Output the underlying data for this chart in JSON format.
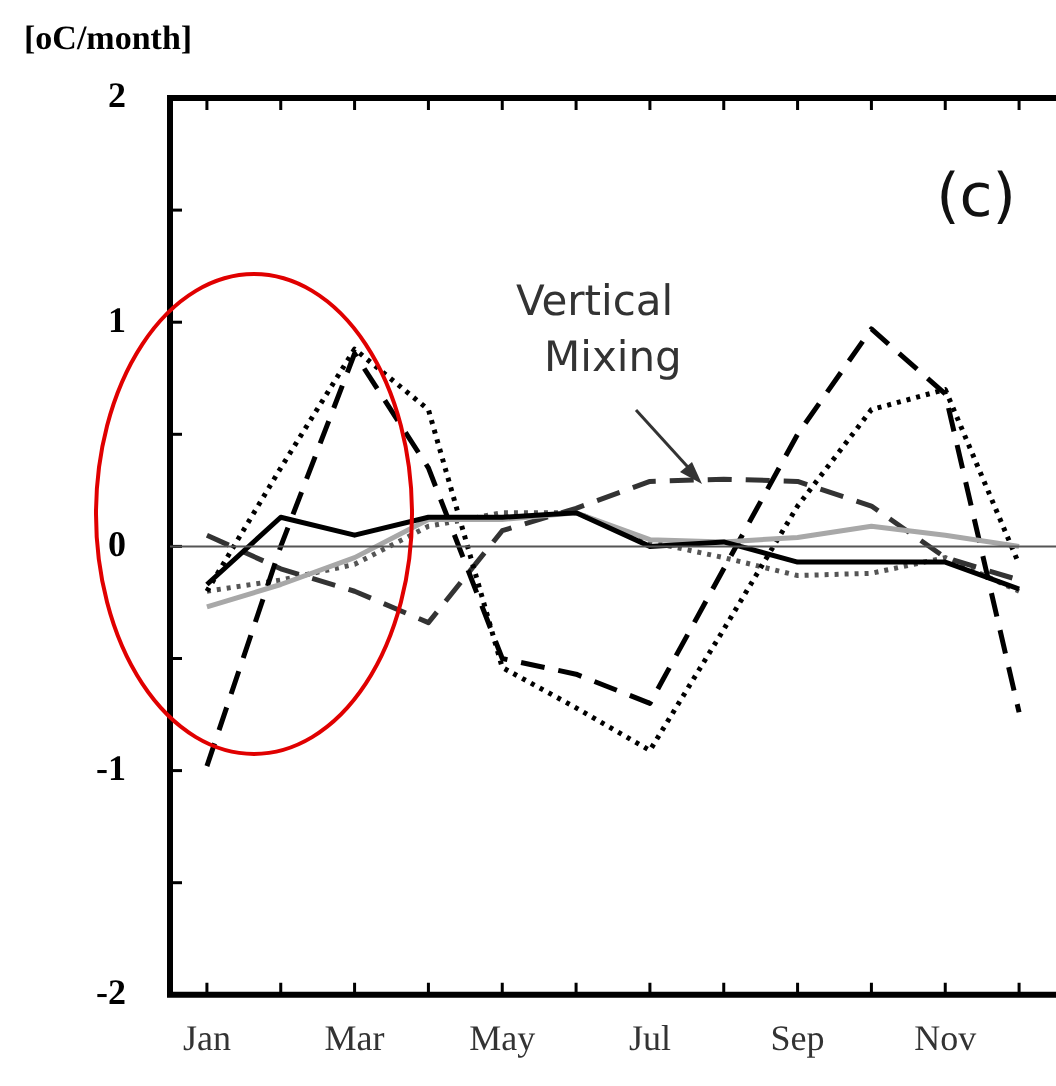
{
  "chart_data": {
    "type": "line",
    "ylabel": "[oC/month]",
    "categories": [
      "Jan",
      null,
      "Mar",
      null,
      "May",
      null,
      "Jul",
      null,
      "Sep",
      null,
      "Nov",
      null
    ],
    "ylim": [
      -2,
      2
    ],
    "yticks": [
      -2,
      {
        "value": -1.5,
        "label": null
      },
      -1,
      {
        "value": -0.5,
        "label": null
      },
      0,
      {
        "value": 0.5,
        "label": null
      },
      1,
      {
        "value": 1.5,
        "label": null
      },
      2
    ],
    "series": [
      {
        "color": "#000000",
        "line_style": "solid",
        "values": [
          -0.17,
          0.13,
          0.05,
          0.13,
          0.13,
          0.15,
          0.0,
          0.02,
          -0.07,
          -0.07,
          -0.07,
          -0.19
        ]
      },
      {
        "color": "#a8a8a8",
        "line_style": "solid",
        "values": [
          -0.27,
          -0.17,
          -0.05,
          0.12,
          0.12,
          0.15,
          0.03,
          0.02,
          0.04,
          0.09,
          0.05,
          0.0
        ]
      },
      {
        "color": "#000000",
        "line_style": "dashed",
        "values": [
          -0.98,
          0.0,
          0.86,
          0.35,
          -0.5,
          -0.57,
          -0.7,
          -0.1,
          0.5,
          0.97,
          0.68,
          -0.74
        ]
      },
      {
        "color": "#000000",
        "line_style": "dotted",
        "values": [
          -0.2,
          0.35,
          0.88,
          0.61,
          -0.54,
          -0.72,
          -0.91,
          -0.37,
          0.18,
          0.61,
          0.7,
          -0.08
        ]
      },
      {
        "color": "#333333",
        "line_style": "dashed",
        "values": [
          0.05,
          -0.1,
          -0.2,
          -0.34,
          0.07,
          0.17,
          0.29,
          0.3,
          0.29,
          0.18,
          -0.05,
          -0.15
        ]
      },
      {
        "color": "#555555",
        "line_style": "dotted",
        "values": [
          -0.2,
          -0.15,
          -0.08,
          0.09,
          0.15,
          0.15,
          0.02,
          -0.05,
          -0.13,
          -0.12,
          -0.05,
          -0.2
        ]
      }
    ],
    "ref_lines": [
      {
        "axis": "y",
        "value": 0,
        "color": "#555555"
      }
    ],
    "annotations": [
      "(c)",
      "Vertical Mixing"
    ],
    "grid": false,
    "legend": false,
    "marker": "none"
  }
}
